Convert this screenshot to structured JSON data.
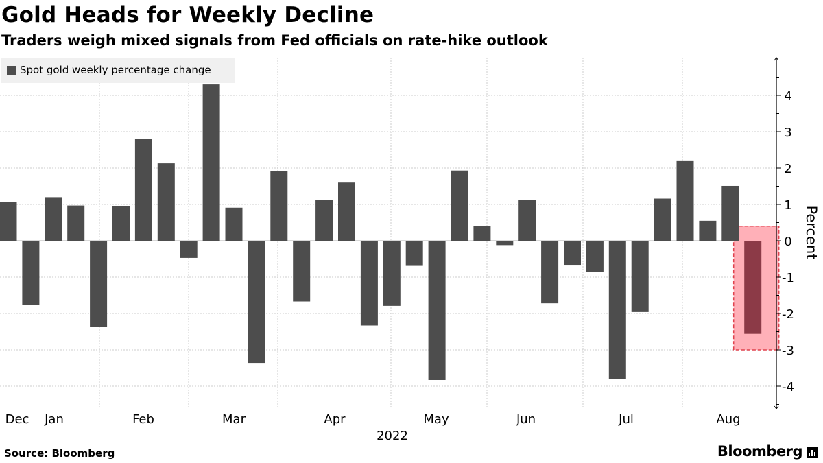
{
  "header": {
    "title": "Gold Heads for Weekly Decline",
    "subtitle": "Traders weigh mixed signals from Fed officials on rate-hike outlook"
  },
  "footer": {
    "source": "Source: Bloomberg",
    "brand": "Bloomberg"
  },
  "colors": {
    "bar": "#4d4d4d",
    "highlight_bar": "#8c3a47",
    "highlight_fill": "#ffb0b8",
    "highlight_border": "#e0424e",
    "grid": "#cccccc"
  },
  "chart_data": {
    "type": "bar",
    "title": "Gold Heads for Weekly Decline",
    "subtitle": "Traders weigh mixed signals from Fed officials on rate-hike outlook",
    "legend": [
      "Spot gold weekly percentage change"
    ],
    "legend_position": "top-left",
    "xlabel": "2022",
    "ylabel": "Percent",
    "ylim": [
      -4.6,
      5.0
    ],
    "yticks": [
      4,
      3,
      2,
      1,
      0,
      -1,
      -2,
      -3,
      -4
    ],
    "grid": true,
    "x_tick_labels": [
      "Dec",
      "Jan",
      "Feb",
      "Mar",
      "Apr",
      "May",
      "Jun",
      "Jul",
      "Aug"
    ],
    "x_tick_bar_index": [
      0,
      2,
      6,
      10,
      14,
      19,
      23,
      27,
      31
    ],
    "series": [
      {
        "name": "Spot gold weekly percentage change",
        "values": [
          1.07,
          -1.77,
          1.2,
          0.97,
          -2.37,
          0.95,
          2.8,
          2.13,
          -0.47,
          4.3,
          0.91,
          -3.36,
          1.91,
          -1.67,
          1.13,
          1.6,
          -2.33,
          -1.79,
          -0.69,
          -3.83,
          1.93,
          0.4,
          -0.12,
          1.12,
          -1.72,
          -0.68,
          -0.85,
          -3.81,
          -1.96,
          1.16,
          2.21,
          0.55,
          1.51,
          -2.56
        ]
      }
    ],
    "highlight": {
      "index": 33,
      "range": [
        -3.0,
        0.4
      ]
    }
  }
}
